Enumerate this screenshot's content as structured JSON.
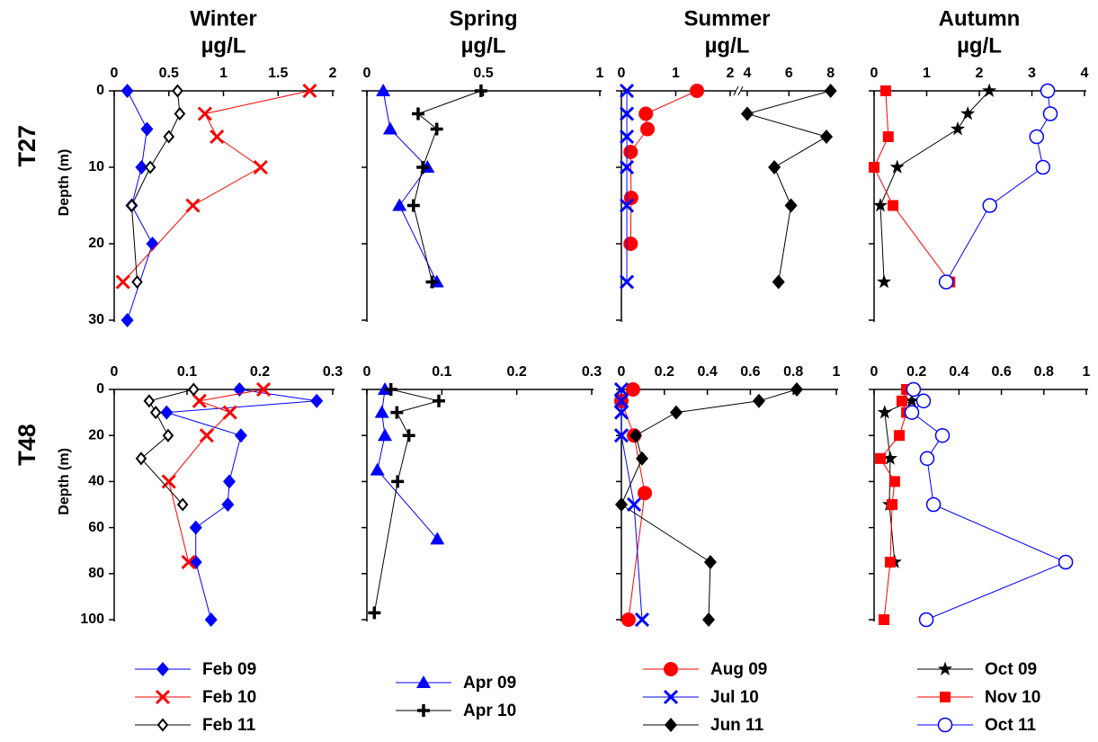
{
  "chart_data": [
    {
      "type": "line",
      "title": "Winter",
      "xlabel": "µg/L",
      "series": [
        {
          "name": "Feb 09",
          "color": "#0000ff",
          "marker": "diamond"
        },
        {
          "name": "Feb 10",
          "color": "#ff0000",
          "marker": "x"
        },
        {
          "name": "Feb 11",
          "color": "#000000",
          "marker": "diamond-open"
        }
      ],
      "panels": [
        {
          "row_label": "T27",
          "ylabel": "Depth (m)",
          "ylim": [
            0,
            30
          ],
          "yticks": [
            0,
            10,
            20,
            30
          ],
          "y_inverted": true,
          "xlim": [
            0,
            2
          ],
          "xticks": [
            0,
            0.5,
            1,
            1.5,
            2
          ],
          "series": [
            {
              "depth": [
                0,
                5,
                10,
                15,
                20,
                30
              ],
              "values": [
                0.12,
                0.3,
                0.25,
                0.16,
                0.35,
                0.12
              ]
            },
            {
              "depth": [
                0,
                3,
                6,
                10,
                15,
                25
              ],
              "values": [
                1.79,
                0.83,
                0.94,
                1.34,
                0.72,
                0.08
              ]
            },
            {
              "depth": [
                0,
                3,
                6,
                10,
                15,
                25
              ],
              "values": [
                0.58,
                0.6,
                0.5,
                0.33,
                0.16,
                0.21
              ]
            }
          ]
        },
        {
          "row_label": "T48",
          "ylabel": "Depth (m)",
          "ylim": [
            0,
            100
          ],
          "yticks": [
            0,
            20,
            40,
            60,
            80,
            100
          ],
          "y_inverted": true,
          "xlim": [
            0,
            0.3
          ],
          "xticks": [
            0,
            0.1,
            0.2,
            0.3
          ],
          "series": [
            {
              "depth": [
                0,
                5,
                10,
                20,
                40,
                50,
                60,
                75,
                100
              ],
              "values": [
                0.172,
                0.278,
                0.072,
                0.174,
                0.158,
                0.156,
                0.112,
                0.112,
                0.133
              ]
            },
            {
              "depth": [
                0,
                5,
                10,
                20,
                40,
                75
              ],
              "values": [
                0.205,
                0.117,
                0.159,
                0.127,
                0.075,
                0.102
              ]
            },
            {
              "depth": [
                0,
                5,
                10,
                20,
                30,
                50
              ],
              "values": [
                0.109,
                0.048,
                0.057,
                0.074,
                0.037,
                0.094
              ]
            }
          ]
        }
      ]
    },
    {
      "type": "line",
      "title": "Spring",
      "xlabel": "µg/L",
      "series": [
        {
          "name": "Apr 09",
          "color": "#0000ff",
          "marker": "triangle"
        },
        {
          "name": "Apr 10",
          "color": "#000000",
          "marker": "plus"
        }
      ],
      "panels": [
        {
          "xlim": [
            0,
            1
          ],
          "xticks": [
            0,
            0.5,
            1
          ],
          "series": [
            {
              "depth": [
                0,
                5,
                10,
                15,
                25
              ],
              "values": [
                0.07,
                0.1,
                0.26,
                0.14,
                0.3
              ]
            },
            {
              "depth": [
                0,
                3,
                5,
                10,
                15,
                25
              ],
              "values": [
                0.49,
                0.22,
                0.3,
                0.24,
                0.2,
                0.28
              ]
            }
          ]
        },
        {
          "xlim": [
            0,
            0.3
          ],
          "xticks": [
            0,
            0.1,
            0.2,
            0.3
          ],
          "series": [
            {
              "depth": [
                0,
                10,
                20,
                35,
                65
              ],
              "values": [
                0.024,
                0.02,
                0.024,
                0.014,
                0.094
              ]
            },
            {
              "depth": [
                0,
                5,
                10,
                20,
                40,
                97
              ],
              "values": [
                0.032,
                0.096,
                0.04,
                0.056,
                0.041,
                0.01
              ]
            }
          ]
        }
      ]
    },
    {
      "type": "line",
      "title": "Summer",
      "xlabel": "µg/L",
      "series": [
        {
          "name": "Aug 09",
          "color": "#ff0000",
          "marker": "circle"
        },
        {
          "name": "Jul 10",
          "color": "#0000ff",
          "marker": "x"
        },
        {
          "name": "Jun 11",
          "color": "#000000",
          "marker": "diamond"
        }
      ],
      "panels": [
        {
          "xlim": [
            0,
            2.1
          ],
          "xticks": [
            0,
            1,
            2
          ],
          "x2lim": [
            3.7,
            8.1
          ],
          "x2ticks": [
            4,
            6,
            8
          ],
          "axis_break": true,
          "series": [
            {
              "depth": [
                0,
                3,
                5,
                8,
                14,
                20
              ],
              "values": [
                1.39,
                0.45,
                0.48,
                0.17,
                0.18,
                0.17
              ]
            },
            {
              "depth": [
                0,
                3,
                6,
                10,
                15,
                25
              ],
              "values": [
                0.1,
                0.1,
                0.1,
                0.1,
                0.1,
                0.1
              ]
            },
            {
              "depth": [
                0,
                3,
                6,
                10,
                15,
                25
              ],
              "values": [
                8,
                4,
                7.8,
                5.3,
                6.1,
                5.5
              ],
              "axis": "x2"
            }
          ]
        },
        {
          "xlim": [
            0,
            1
          ],
          "xticks": [
            0,
            0.2,
            0.4,
            0.6,
            0.8,
            1
          ],
          "series": [
            {
              "depth": [
                0,
                5,
                20,
                45,
                100
              ],
              "values": [
                0.054,
                0,
                0.059,
                0.109,
                0.033
              ]
            },
            {
              "depth": [
                0,
                5,
                10,
                20,
                50,
                100
              ],
              "values": [
                0,
                0,
                0,
                0,
                0.059,
                0.096
              ]
            },
            {
              "depth": [
                0,
                5,
                10,
                20,
                30,
                50,
                75,
                100
              ],
              "values": [
                0.816,
                0.64,
                0.255,
                0.067,
                0.096,
                0,
                0.414,
                0.406
              ]
            }
          ]
        }
      ]
    },
    {
      "type": "line",
      "title": "Autumn",
      "xlabel": "µg/L",
      "series": [
        {
          "name": "Oct 09",
          "color": "#000000",
          "marker": "star"
        },
        {
          "name": "Nov 10",
          "color": "#ff0000",
          "marker": "square"
        },
        {
          "name": "Oct 11",
          "color": "#0000ff",
          "marker": "circle-open"
        }
      ],
      "panels": [
        {
          "xlim": [
            0,
            4
          ],
          "xticks": [
            0,
            1,
            2,
            3,
            4
          ],
          "series": [
            {
              "depth": [
                0,
                3,
                5,
                10,
                15,
                25
              ],
              "values": [
                2.19,
                1.78,
                1.59,
                0.44,
                0.12,
                0.19
              ]
            },
            {
              "depth": [
                0,
                6,
                10,
                15,
                25
              ],
              "values": [
                0.22,
                0.27,
                0,
                0.36,
                1.44
              ]
            },
            {
              "depth": [
                0,
                3,
                6,
                10,
                15,
                25
              ],
              "values": [
                3.3,
                3.35,
                3.09,
                3.21,
                2.2,
                1.37
              ]
            }
          ]
        },
        {
          "xlim": [
            0,
            1
          ],
          "xticks": [
            0,
            0.2,
            0.4,
            0.6,
            0.8,
            1
          ],
          "series": [
            {
              "depth": [
                0,
                5,
                10,
                30,
                50,
                75
              ],
              "values": [
                0.174,
                0.178,
                0.05,
                0.076,
                0.072,
                0.097
              ]
            },
            {
              "depth": [
                0,
                5,
                10,
                20,
                30,
                40,
                50,
                75,
                100
              ],
              "values": [
                0.153,
                0.131,
                0.153,
                0.119,
                0.03,
                0.097,
                0.085,
                0.076,
                0.047
              ]
            },
            {
              "depth": [
                0,
                5,
                10,
                20,
                30,
                50,
                75,
                100
              ],
              "values": [
                0.186,
                0.233,
                0.178,
                0.322,
                0.25,
                0.28,
                0.903,
                0.246
              ]
            }
          ]
        }
      ]
    }
  ]
}
